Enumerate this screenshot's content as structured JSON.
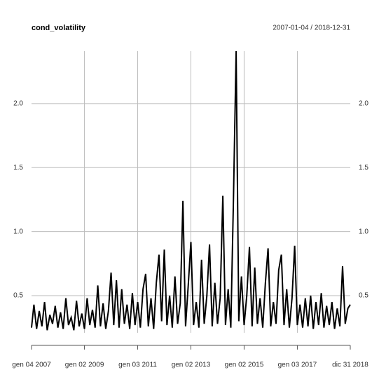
{
  "chart_data": {
    "type": "line",
    "title": "cond_volatility",
    "subtitle": "2007-01-04 / 2018-12-31",
    "x": [
      2007.01,
      2007.1,
      2007.2,
      2007.3,
      2007.4,
      2007.5,
      2007.6,
      2007.7,
      2007.8,
      2007.9,
      2008.0,
      2008.1,
      2008.2,
      2008.3,
      2008.4,
      2008.5,
      2008.6,
      2008.7,
      2008.8,
      2008.9,
      2009.0,
      2009.1,
      2009.2,
      2009.3,
      2009.4,
      2009.5,
      2009.6,
      2009.7,
      2009.8,
      2009.9,
      2010.0,
      2010.1,
      2010.2,
      2010.3,
      2010.4,
      2010.5,
      2010.6,
      2010.7,
      2010.8,
      2010.9,
      2011.0,
      2011.1,
      2011.2,
      2011.3,
      2011.4,
      2011.5,
      2011.6,
      2011.7,
      2011.8,
      2011.9,
      2012.0,
      2012.1,
      2012.2,
      2012.3,
      2012.4,
      2012.5,
      2012.6,
      2012.7,
      2012.8,
      2012.9,
      2013.0,
      2013.1,
      2013.2,
      2013.3,
      2013.4,
      2013.5,
      2013.6,
      2013.7,
      2013.8,
      2013.9,
      2014.0,
      2014.1,
      2014.2,
      2014.3,
      2014.4,
      2014.5,
      2014.6,
      2014.7,
      2014.8,
      2014.9,
      2015.0,
      2015.1,
      2015.2,
      2015.3,
      2015.4,
      2015.5,
      2015.6,
      2015.7,
      2015.8,
      2015.9,
      2016.0,
      2016.1,
      2016.2,
      2016.3,
      2016.4,
      2016.5,
      2016.6,
      2016.7,
      2016.8,
      2016.9,
      2017.0,
      2017.1,
      2017.2,
      2017.3,
      2017.4,
      2017.5,
      2017.6,
      2017.7,
      2017.8,
      2017.9,
      2018.0,
      2018.1,
      2018.2,
      2018.3,
      2018.4,
      2018.5,
      2018.6,
      2018.7,
      2018.8,
      2018.9,
      2018.99
    ],
    "series": [
      {
        "name": "cond_volatility",
        "color": "#000000",
        "values": [
          0.25,
          0.43,
          0.24,
          0.38,
          0.26,
          0.45,
          0.23,
          0.35,
          0.28,
          0.42,
          0.25,
          0.37,
          0.24,
          0.48,
          0.27,
          0.33,
          0.23,
          0.46,
          0.26,
          0.36,
          0.24,
          0.48,
          0.27,
          0.39,
          0.25,
          0.58,
          0.26,
          0.44,
          0.24,
          0.38,
          0.68,
          0.27,
          0.62,
          0.25,
          0.55,
          0.28,
          0.43,
          0.24,
          0.52,
          0.27,
          0.45,
          0.25,
          0.55,
          0.67,
          0.26,
          0.48,
          0.24,
          0.6,
          0.82,
          0.3,
          0.86,
          0.27,
          0.5,
          0.25,
          0.65,
          0.28,
          0.44,
          1.24,
          0.26,
          0.58,
          0.92,
          0.27,
          0.45,
          0.25,
          0.78,
          0.28,
          0.5,
          0.9,
          0.26,
          0.6,
          0.28,
          0.48,
          1.28,
          0.27,
          0.55,
          0.25,
          1.26,
          2.41,
          0.3,
          0.65,
          0.27,
          0.5,
          0.88,
          0.26,
          0.72,
          0.28,
          0.48,
          0.25,
          0.6,
          0.87,
          0.26,
          0.45,
          0.28,
          0.7,
          0.82,
          0.27,
          0.55,
          0.25,
          0.48,
          0.89,
          0.27,
          0.43,
          0.25,
          0.48,
          0.26,
          0.5,
          0.24,
          0.45,
          0.27,
          0.52,
          0.25,
          0.42,
          0.27,
          0.45,
          0.24,
          0.4,
          0.26,
          0.73,
          0.28,
          0.4,
          0.43
        ]
      }
    ],
    "xlim": [
      2007.01,
      2018.99
    ],
    "xticks": [
      {
        "value": 2007.01,
        "label": "gen 04 2007"
      },
      {
        "value": 2009.0,
        "label": "gen 02 2009"
      },
      {
        "value": 2011.0,
        "label": "gen 03 2011"
      },
      {
        "value": 2013.0,
        "label": "gen 02 2013"
      },
      {
        "value": 2015.0,
        "label": "gen 02 2015"
      },
      {
        "value": 2017.0,
        "label": "gen 03 2017"
      },
      {
        "value": 2018.99,
        "label": "dic 31 2018"
      }
    ],
    "ylim": [
      0.21,
      2.41
    ],
    "yticks": [
      0.5,
      {
        "value": 1.0,
        "label": "1.0"
      },
      1.5,
      {
        "value": 2.0,
        "label": "2.0"
      }
    ],
    "grid": true
  }
}
